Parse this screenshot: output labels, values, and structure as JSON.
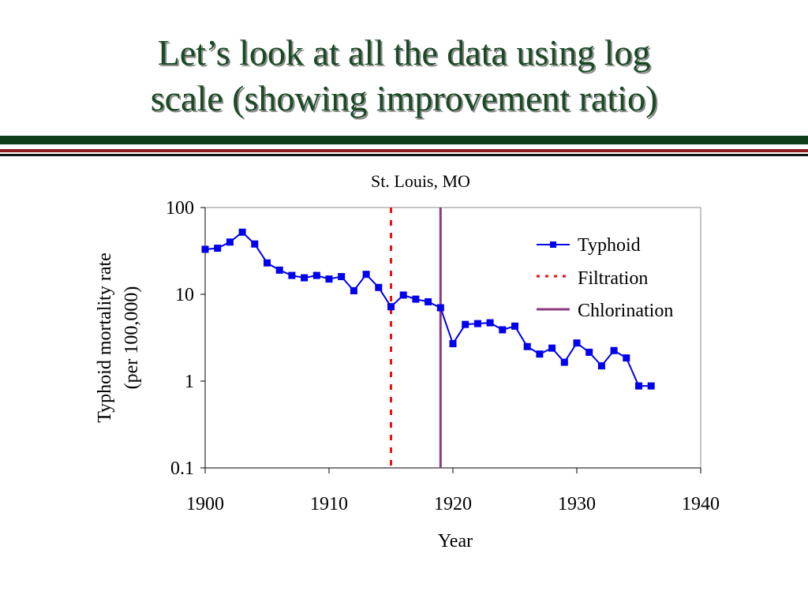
{
  "slide": {
    "title_line1": "Let’s look at all the data using log",
    "title_line2": "scale (showing improvement ratio)",
    "accent_green": "#0f3d1a",
    "accent_red": "#8b1a1a"
  },
  "chart_data": {
    "type": "line",
    "title": "St. Louis, MO",
    "xlabel": "Year",
    "ylabel_line1": "Typhoid mortality rate",
    "ylabel_line2": "(per 100,000)",
    "yscale": "log",
    "xlim": [
      1900,
      1940
    ],
    "ylim": [
      0.1,
      100
    ],
    "x_ticks": [
      1900,
      1910,
      1920,
      1930,
      1940
    ],
    "x_tick_labels": [
      "1900",
      "1910",
      "1920",
      "1930",
      "1940"
    ],
    "y_ticks": [
      0.1,
      1,
      10,
      100
    ],
    "y_tick_labels": [
      "0.1",
      "1",
      "10",
      "100"
    ],
    "legend_position": "top-right",
    "series": [
      {
        "name": "Typhoid",
        "color": "#0000ee",
        "marker": "square",
        "x": [
          1900,
          1901,
          1902,
          1903,
          1904,
          1905,
          1906,
          1907,
          1908,
          1909,
          1910,
          1911,
          1912,
          1913,
          1914,
          1915,
          1916,
          1917,
          1918,
          1919,
          1920,
          1921,
          1922,
          1923,
          1924,
          1925,
          1926,
          1927,
          1928,
          1929,
          1930,
          1931,
          1932,
          1933,
          1934,
          1935,
          1936
        ],
        "values": [
          33,
          34,
          40,
          52,
          38,
          23,
          19,
          16.5,
          15.5,
          16.5,
          15,
          16,
          11,
          17,
          12,
          7.2,
          9.8,
          8.8,
          8.2,
          7,
          2.7,
          4.5,
          4.6,
          4.7,
          3.9,
          4.3,
          2.5,
          2.05,
          2.4,
          1.65,
          2.75,
          2.15,
          1.5,
          2.25,
          1.85,
          0.88,
          0.88
        ]
      },
      {
        "name": "Filtration",
        "color": "#ee1111",
        "style": "dashed",
        "x_value": 1915
      },
      {
        "name": "Chlorination",
        "color": "#8e3a7e",
        "style": "solid",
        "x_value": 1919
      }
    ]
  }
}
